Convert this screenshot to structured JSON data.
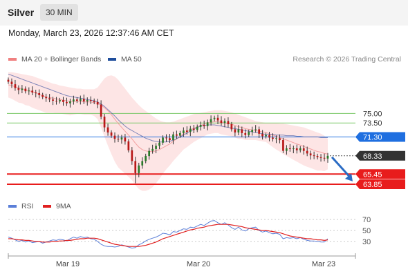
{
  "header": {
    "instrument": "Silver",
    "timeframe": "30 MIN"
  },
  "datetime": "Monday, March 23, 2026 12:37:46 AM CET",
  "legend": {
    "bollinger": {
      "label": "MA 20 + Bollinger Bands",
      "color": "#f08080"
    },
    "ma50": {
      "label": "MA 50",
      "color": "#1f4e9c"
    },
    "credit": "Research © 2026 Trading Central",
    "rsi": {
      "label": "RSI",
      "color": "#5b7fd8"
    },
    "rsi_ma": {
      "label": "9MA",
      "color": "#e02020"
    }
  },
  "chart_data": [
    {
      "type": "candlestick",
      "x_labels": [
        "Mar 19",
        "Mar 20",
        "Mar 23"
      ],
      "ylim": [
        62.0,
        82.0
      ],
      "current_price": 68.33,
      "levels": [
        {
          "value": 75.0,
          "label": "75.00",
          "kind": "resistance",
          "color": "#7cc96a"
        },
        {
          "value": 73.5,
          "label": "73.50",
          "kind": "resistance",
          "color": "#7cc96a"
        },
        {
          "value": 71.3,
          "label": "71.30",
          "kind": "pivot",
          "color": "#1f6fe0"
        },
        {
          "value": 65.45,
          "label": "65.45",
          "kind": "support",
          "color": "#e81c1c"
        },
        {
          "value": 63.85,
          "label": "63.85",
          "kind": "support",
          "color": "#e81c1c"
        }
      ],
      "price_label": {
        "value": 68.33,
        "label": "68.33",
        "color": "#333333"
      },
      "close": [
        80.0,
        79.6,
        79.0,
        78.7,
        78.9,
        78.5,
        78.6,
        78.3,
        78.2,
        77.9,
        77.6,
        77.4,
        77.2,
        77.0,
        76.9,
        77.1,
        76.8,
        76.6,
        76.9,
        77.2,
        77.0,
        77.3,
        76.9,
        77.1,
        77.0,
        76.8,
        76.4,
        74.5,
        72.8,
        72.0,
        71.5,
        71.0,
        70.9,
        71.2,
        70.6,
        69.2,
        67.5,
        65.6,
        66.8,
        67.5,
        68.3,
        69.1,
        69.4,
        69.9,
        70.4,
        71.2,
        71.1,
        70.8,
        71.7,
        71.5,
        71.9,
        72.3,
        72.1,
        72.6,
        72.4,
        72.9,
        73.2,
        73.0,
        73.6,
        74.1,
        74.3,
        73.9,
        73.5,
        73.8,
        73.3,
        72.5,
        72.0,
        72.5,
        71.9,
        71.6,
        72.1,
        72.4,
        72.5,
        71.8,
        71.4,
        71.6,
        71.2,
        71.0,
        71.1,
        70.8,
        69.1,
        69.5,
        69.4,
        69.5,
        69.2,
        69.5,
        69.1,
        68.7,
        68.4,
        68.3,
        68.1,
        68.0,
        67.9,
        68.33
      ],
      "ma50": [
        81.2,
        81.0,
        80.8,
        80.6,
        80.4,
        80.2,
        80.0,
        79.8,
        79.6,
        79.4,
        79.2,
        79.0,
        78.8,
        78.6,
        78.4,
        78.2,
        78.0,
        77.8,
        77.7,
        77.6,
        77.5,
        77.4,
        77.3,
        77.2,
        77.1,
        77.0,
        76.8,
        76.5,
        76.1,
        75.6,
        75.1,
        74.6,
        74.0,
        73.5,
        73.0,
        72.6,
        72.3,
        72.0,
        71.7,
        71.4,
        71.1,
        70.9,
        70.7,
        70.6,
        70.5,
        70.5,
        70.5,
        70.6,
        70.8,
        71.0,
        71.3,
        71.6,
        71.9,
        72.2,
        72.5,
        72.8,
        73.0,
        73.1,
        73.2,
        73.2,
        73.2,
        73.1,
        73.0,
        72.9,
        72.8,
        72.7,
        72.6,
        72.5,
        72.4,
        72.3,
        72.2,
        72.1,
        72.0,
        71.9,
        71.8,
        71.7,
        71.7,
        71.7,
        71.6,
        71.6,
        71.6,
        71.5,
        71.5,
        71.5,
        71.4,
        71.4,
        71.3,
        71.3,
        71.3,
        71.3,
        71.3,
        71.2,
        71.2,
        71.2
      ],
      "bb_mid": [
        79.5,
        79.4,
        79.2,
        79.0,
        78.9,
        78.7,
        78.6,
        78.4,
        78.2,
        78.0,
        77.8,
        77.6,
        77.5,
        77.4,
        77.3,
        77.2,
        77.1,
        77.0,
        76.9,
        76.9,
        76.9,
        76.9,
        76.8,
        76.8,
        76.8,
        76.7,
        76.6,
        76.3,
        75.9,
        75.4,
        74.8,
        74.1,
        73.4,
        72.8,
        72.2,
        71.6,
        71.0,
        70.3,
        69.7,
        69.3,
        69.1,
        69.0,
        69.0,
        69.1,
        69.3,
        69.6,
        69.9,
        70.2,
        70.6,
        71.0,
        71.4,
        71.8,
        72.1,
        72.4,
        72.7,
        72.9,
        73.1,
        73.3,
        73.5,
        73.6,
        73.7,
        73.7,
        73.6,
        73.5,
        73.4,
        73.3,
        73.1,
        72.9,
        72.8,
        72.6,
        72.5,
        72.4,
        72.3,
        72.2,
        72.1,
        72.0,
        71.8,
        71.6,
        71.4,
        71.2,
        71.0,
        70.8,
        70.6,
        70.4,
        70.2,
        70.0,
        69.8,
        69.6,
        69.4,
        69.2,
        69.0,
        68.9,
        68.7,
        68.6
      ],
      "bb_upper": [
        81.5,
        81.5,
        81.4,
        81.3,
        81.2,
        81.1,
        81.0,
        80.9,
        80.7,
        80.5,
        80.3,
        80.1,
        79.9,
        79.7,
        79.6,
        79.4,
        79.3,
        79.2,
        79.1,
        79.0,
        78.9,
        78.9,
        78.8,
        78.8,
        78.8,
        78.8,
        79.1,
        79.8,
        80.5,
        80.9,
        81.0,
        80.8,
        80.3,
        79.6,
        78.9,
        78.2,
        77.5,
        76.9,
        76.3,
        75.8,
        75.4,
        75.0,
        74.6,
        74.2,
        73.9,
        73.7,
        73.6,
        73.6,
        73.7,
        73.9,
        74.1,
        74.3,
        74.5,
        74.7,
        74.9,
        75.0,
        75.1,
        75.2,
        75.3,
        75.4,
        75.5,
        75.5,
        75.5,
        75.4,
        75.3,
        75.2,
        75.0,
        74.8,
        74.6,
        74.4,
        74.2,
        74.0,
        73.8,
        73.7,
        73.6,
        73.5,
        73.5,
        73.5,
        73.5,
        73.4,
        73.4,
        73.3,
        73.2,
        73.1,
        73.0,
        72.9,
        72.8,
        72.6,
        72.4,
        72.2,
        72.0,
        71.8,
        71.5,
        71.0
      ],
      "bb_lower": [
        77.5,
        77.3,
        77.0,
        76.7,
        76.6,
        76.3,
        76.2,
        75.9,
        75.7,
        75.5,
        75.3,
        75.1,
        75.1,
        75.1,
        75.0,
        75.0,
        74.9,
        74.8,
        74.7,
        74.8,
        74.9,
        74.9,
        74.8,
        74.8,
        74.8,
        74.6,
        74.1,
        72.8,
        71.3,
        69.9,
        68.6,
        67.4,
        66.5,
        66.0,
        65.5,
        65.0,
        64.5,
        63.7,
        63.1,
        62.8,
        62.8,
        63.0,
        63.4,
        64.0,
        64.7,
        65.5,
        66.2,
        66.8,
        67.5,
        68.1,
        68.7,
        69.3,
        69.7,
        70.1,
        70.5,
        70.8,
        71.1,
        71.4,
        71.7,
        71.8,
        71.9,
        71.9,
        71.7,
        71.6,
        71.5,
        71.4,
        71.2,
        71.0,
        71.0,
        70.8,
        70.8,
        70.8,
        70.8,
        70.7,
        70.6,
        70.5,
        70.1,
        69.7,
        69.3,
        69.0,
        68.6,
        68.3,
        68.0,
        67.7,
        67.4,
        67.1,
        66.8,
        66.6,
        66.4,
        66.2,
        66.0,
        66.0,
        65.9,
        66.2
      ],
      "forecast": {
        "from": 68.33,
        "to": 64.3,
        "direction": "down"
      }
    },
    {
      "type": "line",
      "title": "RSI",
      "ylim": [
        10,
        80
      ],
      "ticks": [
        70,
        50,
        30
      ],
      "series": [
        {
          "name": "RSI",
          "values": [
            38,
            36,
            33,
            30,
            32,
            29,
            31,
            28,
            29,
            30,
            27,
            29,
            31,
            33,
            32,
            34,
            33,
            31,
            35,
            38,
            36,
            39,
            37,
            38,
            35,
            34,
            30,
            25,
            22,
            21,
            21,
            20,
            21,
            24,
            22,
            20,
            18,
            19,
            24,
            27,
            31,
            34,
            36,
            38,
            41,
            45,
            44,
            42,
            48,
            47,
            50,
            53,
            52,
            56,
            55,
            58,
            61,
            59,
            63,
            67,
            68,
            64,
            61,
            64,
            60,
            55,
            52,
            56,
            51,
            49,
            53,
            55,
            56,
            50,
            47,
            49,
            46,
            44,
            45,
            43,
            35,
            37,
            36,
            37,
            35,
            37,
            34,
            32,
            31,
            31,
            30,
            29,
            29,
            35
          ]
        },
        {
          "name": "9MA",
          "values": [
            35,
            35,
            34,
            33,
            33,
            32,
            32,
            31,
            30,
            30,
            29,
            29,
            29,
            30,
            30,
            31,
            31,
            32,
            32,
            33,
            34,
            35,
            35,
            36,
            36,
            36,
            35,
            33,
            31,
            29,
            27,
            25,
            24,
            23,
            22,
            21,
            21,
            21,
            21,
            22,
            23,
            25,
            27,
            29,
            32,
            35,
            37,
            39,
            41,
            43,
            45,
            47,
            49,
            51,
            52,
            54,
            55,
            56,
            58,
            59,
            60,
            61,
            61,
            61,
            61,
            60,
            59,
            58,
            57,
            55,
            54,
            53,
            52,
            51,
            50,
            50,
            49,
            48,
            47,
            46,
            44,
            42,
            40,
            39,
            38,
            37,
            36,
            35,
            35,
            34,
            33,
            33,
            32,
            33
          ]
        }
      ]
    }
  ]
}
